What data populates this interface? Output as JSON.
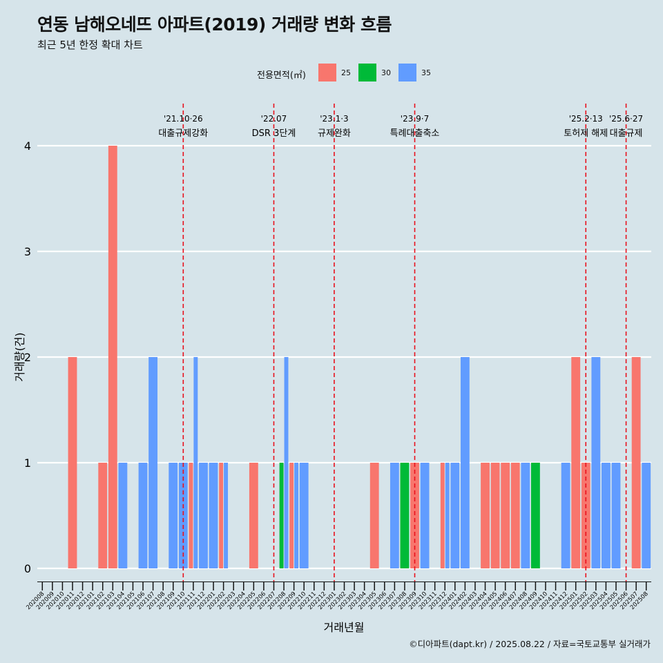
{
  "title": "연동 남해오네뜨 아파트(2019) 거래량 변화 흐름",
  "subtitle": "최근 5년 한정 확대 차트",
  "caption": "©디아파트(dapt.kr) / 2025.08.22 / 자료=국토교통부 실거래가",
  "legend": {
    "title": "전용면적(㎡)",
    "items": [
      {
        "label": "25",
        "color": "#f8766d"
      },
      {
        "label": "30",
        "color": "#00ba38"
      },
      {
        "label": "35",
        "color": "#619cff"
      }
    ]
  },
  "chart_data": {
    "type": "bar",
    "xlabel": "거래년월",
    "ylabel": "거래량(건)",
    "ylim": [
      0,
      4
    ],
    "yticks": [
      0,
      1,
      2,
      3,
      4
    ],
    "grid": true,
    "legend_position": "top",
    "categories": [
      "202008",
      "202009",
      "202010",
      "202011",
      "202012",
      "202101",
      "202102",
      "202103",
      "202104",
      "202105",
      "202106",
      "202107",
      "202108",
      "202109",
      "202110",
      "202111",
      "202112",
      "202201",
      "202202",
      "202203",
      "202204",
      "202205",
      "202206",
      "202207",
      "202208",
      "202209",
      "202210",
      "202211",
      "202212",
      "202301",
      "202302",
      "202303",
      "202304",
      "202305",
      "202306",
      "202307",
      "202308",
      "202309",
      "202310",
      "202311",
      "202312",
      "202401",
      "202402",
      "202403",
      "202404",
      "202405",
      "202406",
      "202407",
      "202408",
      "202409",
      "202410",
      "202411",
      "202412",
      "202501",
      "202502",
      "202503",
      "202504",
      "202505",
      "202506",
      "202507",
      "202508"
    ],
    "series": [
      {
        "name": "25",
        "color": "#f8766d",
        "values": [
          0,
          0,
          0,
          2,
          0,
          0,
          1,
          4,
          0,
          0,
          0,
          0,
          0,
          0,
          0,
          1,
          0,
          0,
          1,
          0,
          0,
          1,
          0,
          0,
          0,
          1,
          0,
          0,
          0,
          0,
          0,
          0,
          0,
          1,
          0,
          0,
          0,
          1,
          0,
          0,
          1,
          0,
          0,
          0,
          1,
          1,
          1,
          1,
          0,
          0,
          0,
          0,
          0,
          2,
          1,
          0,
          0,
          0,
          0,
          2,
          0
        ]
      },
      {
        "name": "30",
        "color": "#00ba38",
        "values": [
          0,
          0,
          0,
          0,
          0,
          0,
          0,
          0,
          0,
          0,
          0,
          0,
          0,
          0,
          0,
          0,
          0,
          0,
          0,
          0,
          0,
          0,
          0,
          0,
          1,
          0,
          0,
          0,
          0,
          0,
          0,
          0,
          0,
          0,
          0,
          0,
          1,
          0,
          0,
          0,
          0,
          0,
          0,
          0,
          0,
          0,
          0,
          0,
          0,
          1,
          0,
          0,
          0,
          0,
          0,
          0,
          0,
          0,
          0,
          0,
          0
        ]
      },
      {
        "name": "35",
        "color": "#619cff",
        "values": [
          0,
          0,
          0,
          0,
          0,
          0,
          0,
          0,
          1,
          0,
          1,
          2,
          0,
          1,
          1,
          2,
          1,
          1,
          1,
          0,
          0,
          0,
          0,
          0,
          2,
          1,
          1,
          0,
          0,
          0,
          0,
          0,
          0,
          0,
          0,
          1,
          0,
          0,
          1,
          0,
          1,
          1,
          2,
          0,
          0,
          0,
          0,
          0,
          1,
          0,
          0,
          0,
          1,
          0,
          0,
          2,
          1,
          1,
          0,
          0,
          1
        ]
      }
    ],
    "annotations": [
      {
        "x": "202110",
        "lines": [
          "'21.10·26",
          "대출규제강화"
        ]
      },
      {
        "x": "202207",
        "lines": [
          "'22.07",
          "DSR 3단계"
        ]
      },
      {
        "x": "202301",
        "lines": [
          "'23.1·3",
          "규제완화"
        ]
      },
      {
        "x": "202309",
        "lines": [
          "'23.9·7",
          "특례대출축소"
        ]
      },
      {
        "x": "202502",
        "lines": [
          "'25.2·13",
          "토허제 해제"
        ]
      },
      {
        "x": "202506",
        "lines": [
          "'25.6·27",
          "대출규제"
        ]
      }
    ]
  }
}
